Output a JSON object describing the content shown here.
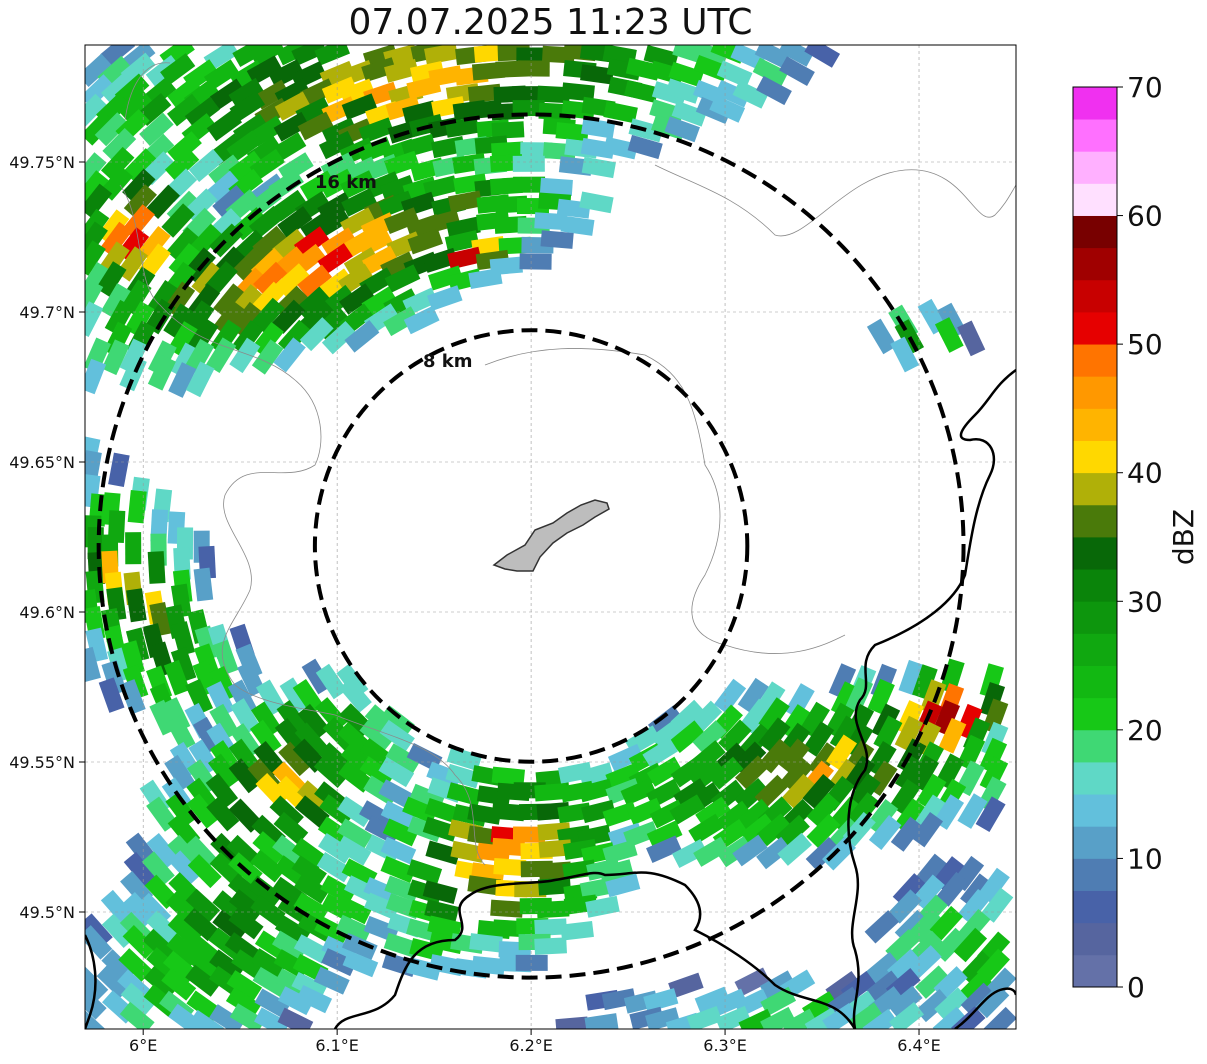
{
  "title": "07.07.2025 11:23 UTC",
  "map": {
    "extent": {
      "lon_min": 5.97,
      "lon_max": 6.45,
      "lat_min": 49.461,
      "lat_max": 49.789
    },
    "center": {
      "lon": 6.2,
      "lat": 49.622
    },
    "lon_ticks": [
      {
        "value": 6.0,
        "label": "6°E"
      },
      {
        "value": 6.1,
        "label": "6.1°E"
      },
      {
        "value": 6.2,
        "label": "6.2°E"
      },
      {
        "value": 6.3,
        "label": "6.3°E"
      },
      {
        "value": 6.4,
        "label": "6.4°E"
      }
    ],
    "lat_ticks": [
      {
        "value": 49.5,
        "label": "49.5°N"
      },
      {
        "value": 49.55,
        "label": "49.55°N"
      },
      {
        "value": 49.6,
        "label": "49.6°N"
      },
      {
        "value": 49.65,
        "label": "49.65°N"
      },
      {
        "value": 49.7,
        "label": "49.7°N"
      },
      {
        "value": 49.75,
        "label": "49.75°N"
      }
    ],
    "gridlines": true,
    "range_rings": [
      {
        "radius_km": 8,
        "label": "8 km"
      },
      {
        "radius_km": 16,
        "label": "16 km"
      }
    ],
    "echo_regions": [
      {
        "name": "north-band",
        "lon": 6.12,
        "lat": 49.75,
        "max_dbz": 56
      },
      {
        "name": "west-edge",
        "lon": 5.99,
        "lat": 49.6,
        "max_dbz": 40
      },
      {
        "name": "southwest-cell",
        "lon": 6.07,
        "lat": 49.545,
        "max_dbz": 52
      },
      {
        "name": "south-cell",
        "lon": 6.19,
        "lat": 49.53,
        "max_dbz": 56
      },
      {
        "name": "southeast-cell",
        "lon": 6.4,
        "lat": 49.565,
        "max_dbz": 58
      },
      {
        "name": "northeast-fragment",
        "lon": 6.4,
        "lat": 49.695,
        "max_dbz": 30
      }
    ]
  },
  "colorbar": {
    "label": "dBZ",
    "min": 0,
    "max": 70,
    "ticks": [
      "0",
      "10",
      "20",
      "30",
      "40",
      "50",
      "60",
      "70"
    ],
    "colors": [
      "#6471a8",
      "#56659f",
      "#4862a8",
      "#4f7db3",
      "#58a0c8",
      "#62c0dc",
      "#5fd8c6",
      "#3fd874",
      "#17c817",
      "#12b812",
      "#10a810",
      "#0d960d",
      "#0a840a",
      "#086808",
      "#4a7a0a",
      "#b0b008",
      "#ffd800",
      "#ffb400",
      "#ff9800",
      "#ff7400",
      "#e60000",
      "#c80000",
      "#a00000",
      "#780000",
      "#ffe0ff",
      "#ffb0ff",
      "#ff70ff",
      "#f030f0"
    ]
  }
}
